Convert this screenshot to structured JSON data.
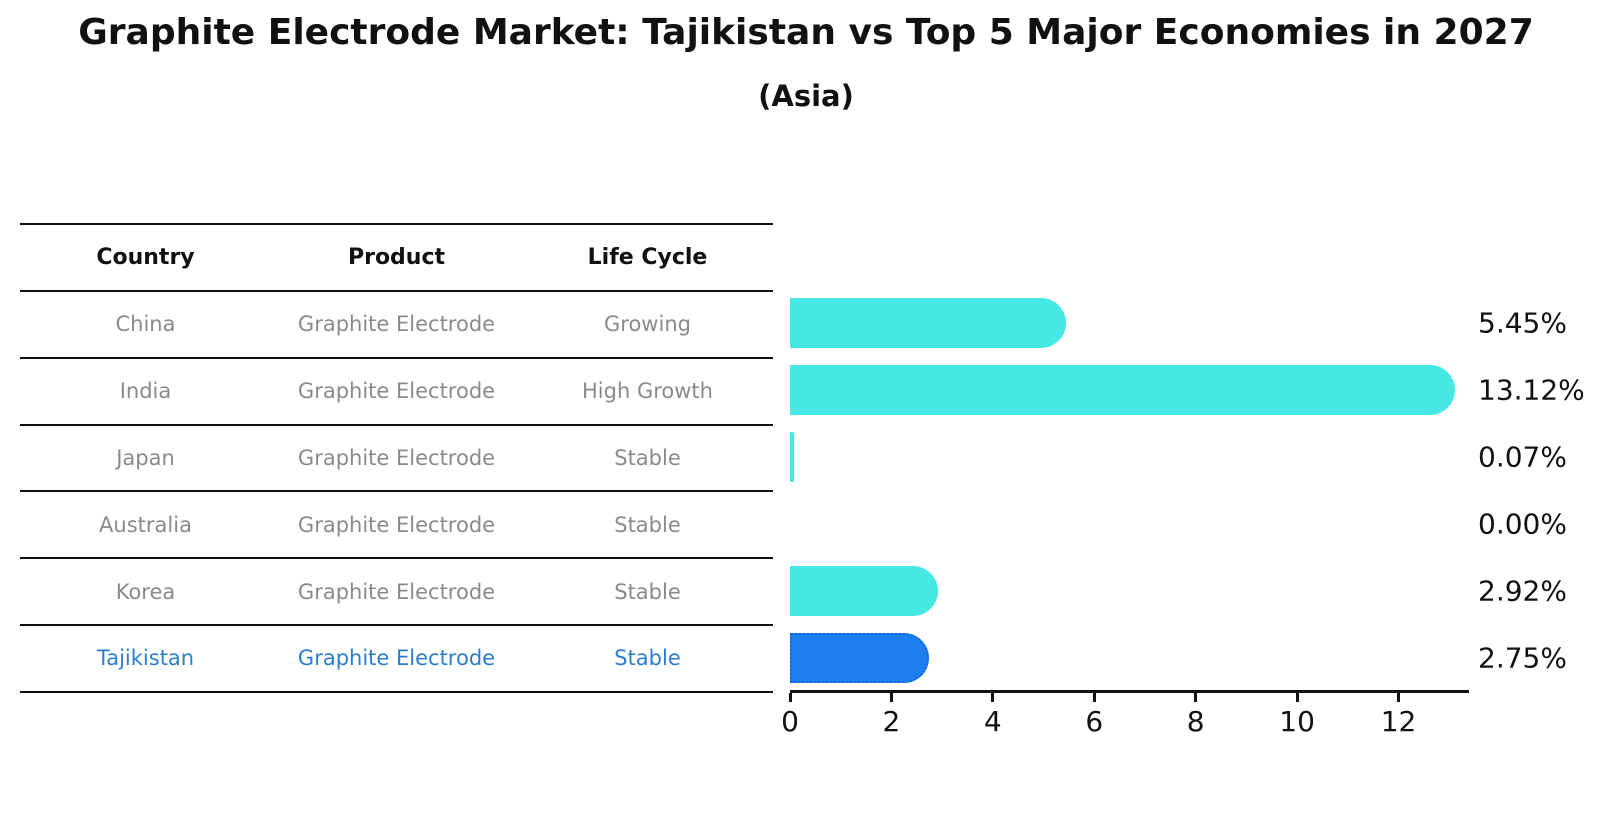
{
  "title": "Graphite Electrode Market: Tajikistan vs Top 5 Major Economies in 2027",
  "subtitle": "(Asia)",
  "table": {
    "headers": [
      "Country",
      "Product",
      "Life Cycle"
    ],
    "rows": [
      {
        "country": "China",
        "product": "Graphite Electrode",
        "life_cycle": "Growing",
        "highlighted": false
      },
      {
        "country": "India",
        "product": "Graphite Electrode",
        "life_cycle": "High Growth",
        "highlighted": false
      },
      {
        "country": "Japan",
        "product": "Graphite Electrode",
        "life_cycle": "Stable",
        "highlighted": false
      },
      {
        "country": "Australia",
        "product": "Graphite Electrode",
        "life_cycle": "Stable",
        "highlighted": false
      },
      {
        "country": "Korea",
        "product": "Graphite Electrode",
        "life_cycle": "Stable",
        "highlighted": false
      },
      {
        "country": "Tajikistan",
        "product": "Graphite Electrode",
        "life_cycle": "Stable",
        "highlighted": true
      }
    ]
  },
  "chart_data": {
    "type": "bar",
    "orientation": "horizontal",
    "title": "Graphite Electrode Market: Tajikistan vs Top 5 Major Economies in 2027",
    "subtitle": "(Asia)",
    "categories": [
      "China",
      "India",
      "Japan",
      "Australia",
      "Korea",
      "Tajikistan"
    ],
    "values": [
      5.45,
      13.12,
      0.07,
      0.0,
      2.92,
      2.75
    ],
    "value_labels": [
      "5.45%",
      "13.12%",
      "0.07%",
      "0.00%",
      "2.92%",
      "2.75%"
    ],
    "x_ticks": [
      0,
      2,
      4,
      6,
      8,
      10,
      12
    ],
    "xlim": [
      0,
      13.35
    ],
    "highlight_index": 5,
    "grid": false,
    "legend": false
  },
  "colors": {
    "bar": "#45e8e2",
    "highlight_bar": "#1e80f0",
    "highlight_border": "#1467d8",
    "highlight_text": "#2b7dd2",
    "muted_text": "#8a8a8a",
    "axis": "#111111",
    "text": "#111111"
  }
}
